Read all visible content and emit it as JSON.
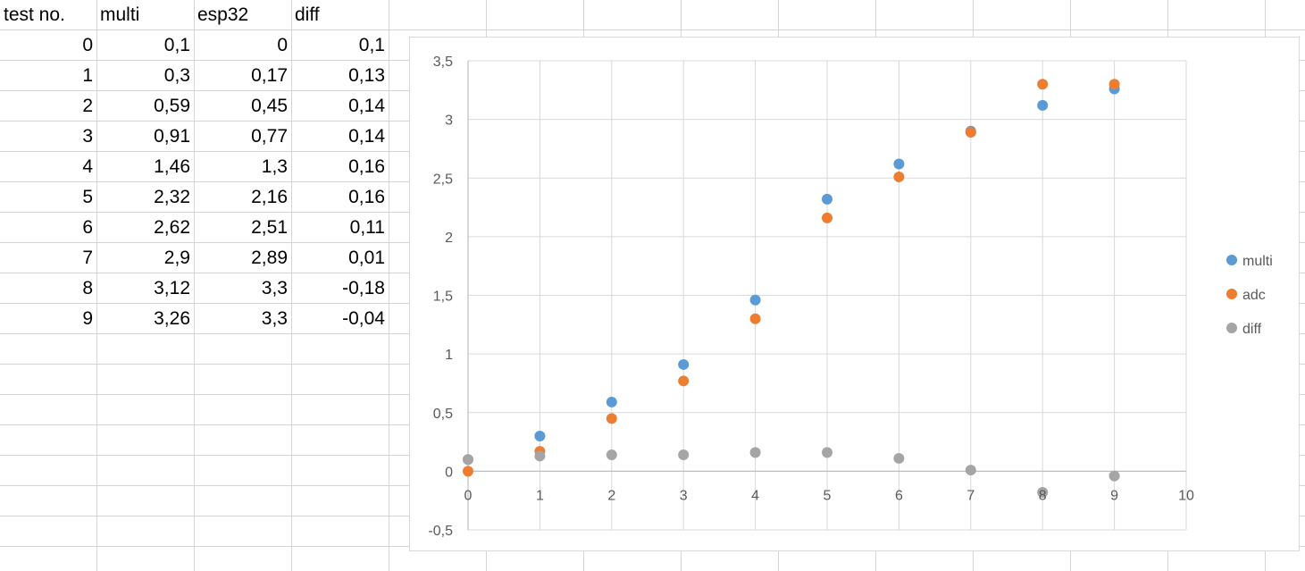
{
  "table": {
    "headers": [
      "test no.",
      "multi",
      "esp32",
      "diff"
    ],
    "rows": [
      [
        "0",
        "0,1",
        "0",
        "0,1"
      ],
      [
        "1",
        "0,3",
        "0,17",
        "0,13"
      ],
      [
        "2",
        "0,59",
        "0,45",
        "0,14"
      ],
      [
        "3",
        "0,91",
        "0,77",
        "0,14"
      ],
      [
        "4",
        "1,46",
        "1,3",
        "0,16"
      ],
      [
        "5",
        "2,32",
        "2,16",
        "0,16"
      ],
      [
        "6",
        "2,62",
        "2,51",
        "0,11"
      ],
      [
        "7",
        "2,9",
        "2,89",
        "0,01"
      ],
      [
        "8",
        "3,12",
        "3,3",
        "-0,18"
      ],
      [
        "9",
        "3,26",
        "3,3",
        "-0,04"
      ]
    ]
  },
  "chart_data": {
    "type": "scatter",
    "title": "",
    "xlabel": "",
    "ylabel": "",
    "xlim": [
      0,
      10
    ],
    "ylim": [
      -0.5,
      3.5
    ],
    "x_ticks": [
      "0",
      "1",
      "2",
      "3",
      "4",
      "5",
      "6",
      "7",
      "8",
      "9",
      "10"
    ],
    "y_ticks": [
      "-0,5",
      "0",
      "0,5",
      "1",
      "1,5",
      "2",
      "2,5",
      "3",
      "3,5"
    ],
    "grid": true,
    "legend_position": "right",
    "series": [
      {
        "name": "multi",
        "color": "#5B9BD5",
        "x": [
          0,
          1,
          2,
          3,
          4,
          5,
          6,
          7,
          8,
          9
        ],
        "y": [
          0.1,
          0.3,
          0.59,
          0.91,
          1.46,
          2.32,
          2.62,
          2.9,
          3.12,
          3.26
        ]
      },
      {
        "name": "adc",
        "color": "#ED7D31",
        "x": [
          0,
          1,
          2,
          3,
          4,
          5,
          6,
          7,
          8,
          9
        ],
        "y": [
          0,
          0.17,
          0.45,
          0.77,
          1.3,
          2.16,
          2.51,
          2.89,
          3.3,
          3.3
        ]
      },
      {
        "name": "diff",
        "color": "#A5A5A5",
        "x": [
          0,
          1,
          2,
          3,
          4,
          5,
          6,
          7,
          8,
          9
        ],
        "y": [
          0.1,
          0.13,
          0.14,
          0.14,
          0.16,
          0.16,
          0.11,
          0.01,
          -0.18,
          -0.04
        ]
      }
    ]
  }
}
